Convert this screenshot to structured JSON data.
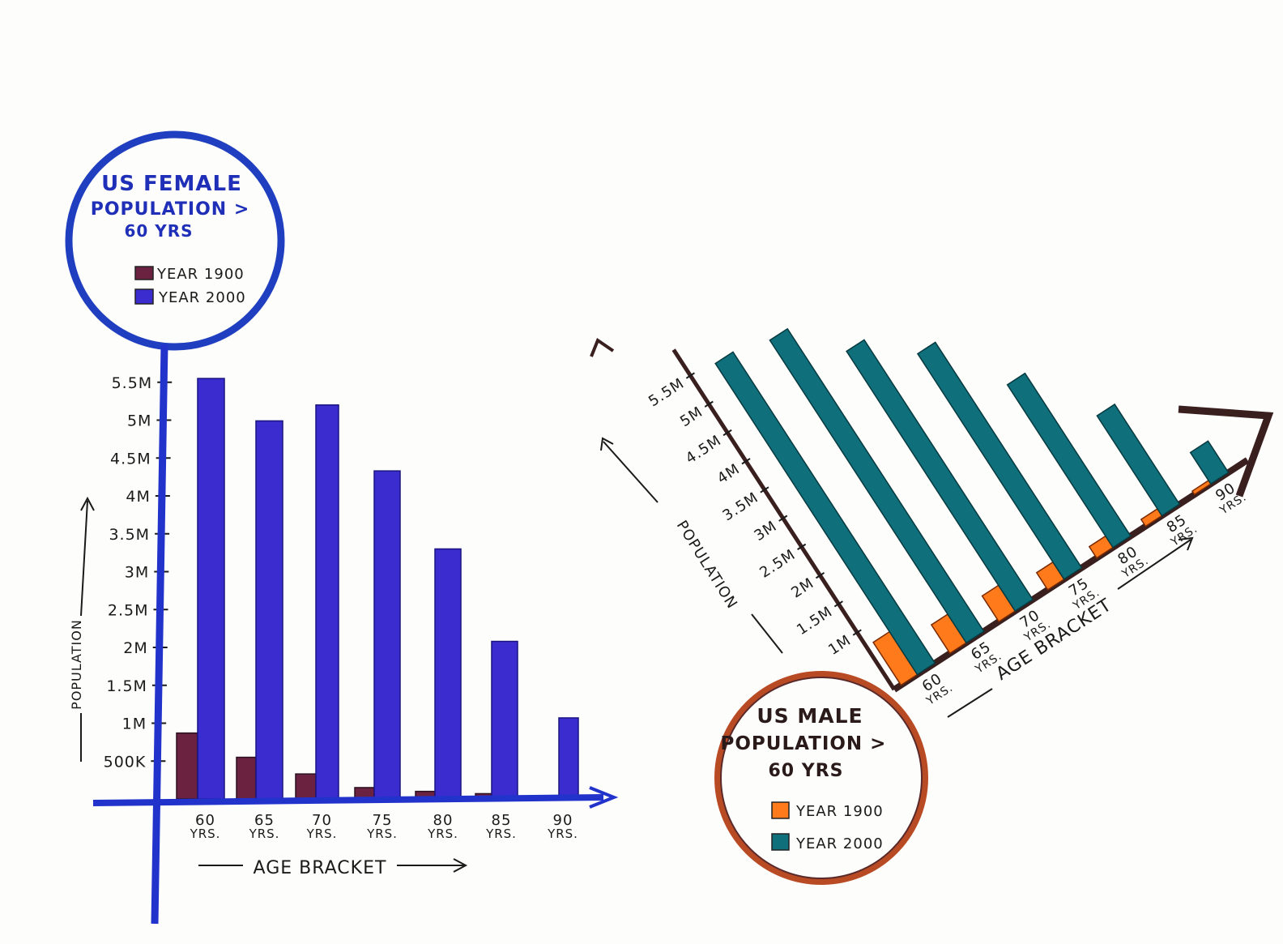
{
  "chart_data": [
    {
      "type": "bar",
      "title": [
        "US FEMALE",
        "POPULATION >",
        "60 YRS"
      ],
      "xlabel": "AGE BRACKET",
      "ylabel": "POPULATION",
      "categories": [
        [
          "60",
          "YRS."
        ],
        [
          "65",
          "YRS."
        ],
        [
          "70",
          "YRS."
        ],
        [
          "75",
          "YRS."
        ],
        [
          "80",
          "YRS."
        ],
        [
          "85",
          "YRS."
        ],
        [
          "90",
          "YRS."
        ]
      ],
      "yticks": [
        "500K",
        "1M",
        "1.5M",
        "2M",
        "2.5M",
        "3M",
        "3.5M",
        "4M",
        "4.5M",
        "5M",
        "5.5M"
      ],
      "ytick_values": [
        0.5,
        1,
        1.5,
        2,
        2.5,
        3,
        3.5,
        4,
        4.5,
        5,
        5.5
      ],
      "ylim": [
        0,
        5.6
      ],
      "legend_position": "top-left",
      "series": [
        {
          "name": "YEAR 1900",
          "color": "#6b2240",
          "values": [
            0.87,
            0.55,
            0.33,
            0.15,
            0.1,
            0.07,
            0.04
          ]
        },
        {
          "name": "YEAR 2000",
          "color": "#3a2ccf",
          "values": [
            5.55,
            4.99,
            5.2,
            4.33,
            3.3,
            2.08,
            1.07
          ]
        }
      ],
      "colors": {
        "axis": "#2233cc",
        "circle": "#1f3fc0",
        "text": "#1a1a1a"
      }
    },
    {
      "type": "bar",
      "title": [
        "US MALE",
        "POPULATION >",
        "60 YRS"
      ],
      "xlabel": "AGE BRACKET",
      "ylabel": "POPULATION",
      "categories": [
        [
          "60",
          "YRS."
        ],
        [
          "65",
          "YRS."
        ],
        [
          "70",
          "YRS."
        ],
        [
          "75",
          "YRS."
        ],
        [
          "80",
          "YRS."
        ],
        [
          "85",
          "YRS."
        ],
        [
          "90",
          "YRS."
        ]
      ],
      "yticks": [
        "1M",
        "1.5M",
        "2M",
        "2.5M",
        "3M",
        "3.5M",
        "4M",
        "4.5M",
        "5M",
        "5.5M"
      ],
      "ytick_values": [
        1,
        1.5,
        2,
        2.5,
        3,
        3.5,
        4,
        4.5,
        5,
        5.5
      ],
      "ylim": [
        0,
        5.8
      ],
      "orientation": "rotated",
      "legend_position": "bottom-left",
      "series": [
        {
          "name": "YEAR 1900",
          "color": "#ff7a1a",
          "values": [
            0.75,
            0.5,
            0.45,
            0.3,
            0.2,
            0.12,
            0.06
          ]
        },
        {
          "name": "YEAR 2000",
          "color": "#0f6f7a",
          "values": [
            5.45,
            5.3,
            4.55,
            3.95,
            2.85,
            1.75,
            0.55
          ]
        }
      ],
      "colors": {
        "axis": "#3a1f1f",
        "circle": "#b84a24",
        "text": "#2a1a1a"
      }
    }
  ]
}
